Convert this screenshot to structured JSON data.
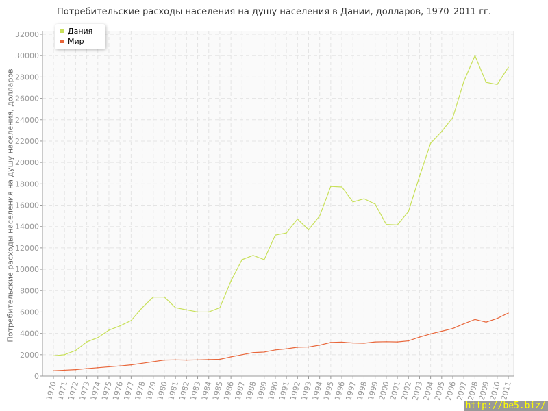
{
  "chart_data": {
    "type": "line",
    "title": "Потребительские расходы населения на душу населения в Дании, долларов, 1970–2011 гг.",
    "ylabel": "Потребительские расходы населения на душу населения, долларов",
    "xlabel": "",
    "ylim": [
      0,
      32000
    ],
    "yticks": [
      0,
      2000,
      4000,
      6000,
      8000,
      10000,
      12000,
      14000,
      16000,
      18000,
      20000,
      22000,
      24000,
      26000,
      28000,
      30000,
      32000
    ],
    "grid": true,
    "legend": "top-left",
    "x": [
      1970,
      1971,
      1972,
      1973,
      1974,
      1975,
      1976,
      1977,
      1978,
      1979,
      1980,
      1981,
      1982,
      1983,
      1984,
      1985,
      1986,
      1987,
      1988,
      1989,
      1990,
      1991,
      1992,
      1993,
      1994,
      1995,
      1996,
      1997,
      1998,
      1999,
      2000,
      2001,
      2002,
      2003,
      2004,
      2005,
      2006,
      2007,
      2008,
      2009,
      2010,
      2011
    ],
    "series": [
      {
        "name": "Дания",
        "color": "#c8e05a",
        "values": [
          1900,
          2000,
          2400,
          3200,
          3600,
          4300,
          4700,
          5200,
          6400,
          7400,
          7400,
          6400,
          6200,
          6000,
          6000,
          6400,
          8900,
          10900,
          11300,
          10900,
          13200,
          13400,
          14700,
          13700,
          15000,
          17750,
          17700,
          16300,
          16600,
          16100,
          14200,
          14150,
          15400,
          18700,
          21800,
          22900,
          24200,
          27600,
          30000,
          27500,
          27300,
          28900
        ]
      },
      {
        "name": "Мир",
        "color": "#e8663a",
        "values": [
          500,
          550,
          600,
          700,
          780,
          870,
          950,
          1050,
          1200,
          1350,
          1500,
          1520,
          1500,
          1520,
          1550,
          1570,
          1800,
          2000,
          2200,
          2250,
          2450,
          2550,
          2700,
          2720,
          2900,
          3150,
          3180,
          3100,
          3080,
          3200,
          3220,
          3200,
          3300,
          3650,
          3950,
          4200,
          4450,
          4900,
          5300,
          5050,
          5400,
          5900
        ]
      }
    ]
  },
  "watermark": "http://be5.biz/"
}
